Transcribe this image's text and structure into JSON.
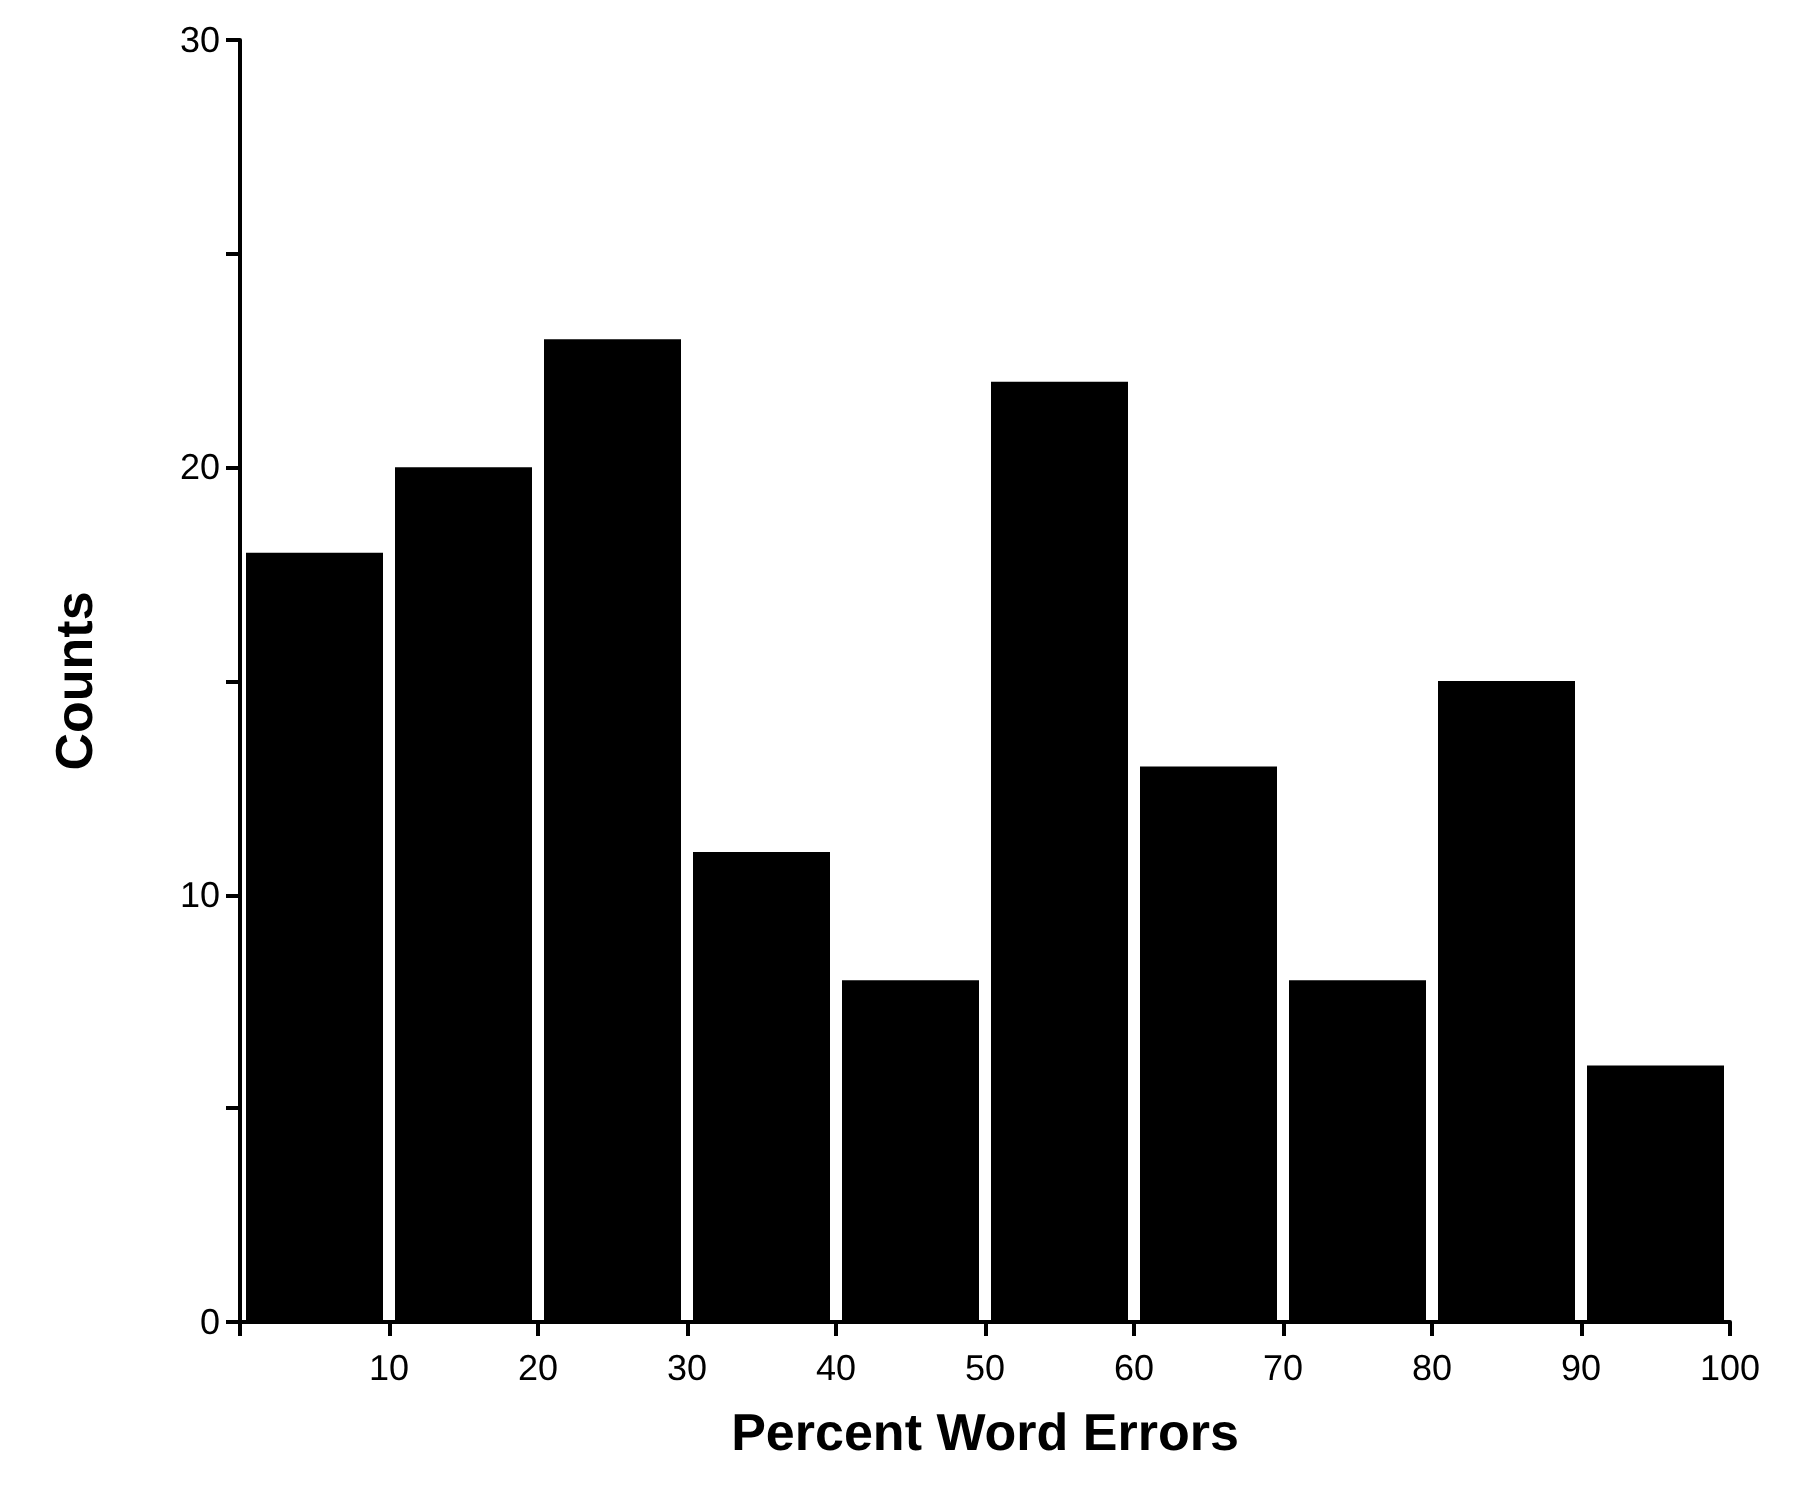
{
  "chart_data": {
    "type": "histogram",
    "xlabel": "Percent Word Errors",
    "ylabel": "Counts",
    "bins": [
      0,
      10,
      20,
      30,
      40,
      50,
      60,
      70,
      80,
      90,
      100
    ],
    "values": [
      18,
      20,
      23,
      11,
      8,
      22,
      13,
      8,
      15,
      6
    ],
    "color": "#000000",
    "xlim": [
      0,
      100
    ],
    "xticks": [
      {
        "value": 0,
        "label": null
      },
      10,
      20,
      30,
      40,
      50,
      60,
      70,
      80,
      90,
      100
    ],
    "ylim": [
      0,
      30
    ],
    "yticks": [
      0,
      {
        "value": 5,
        "label": null
      },
      10,
      {
        "value": 15,
        "label": null
      },
      20,
      {
        "value": 25,
        "label": null
      },
      30
    ]
  }
}
